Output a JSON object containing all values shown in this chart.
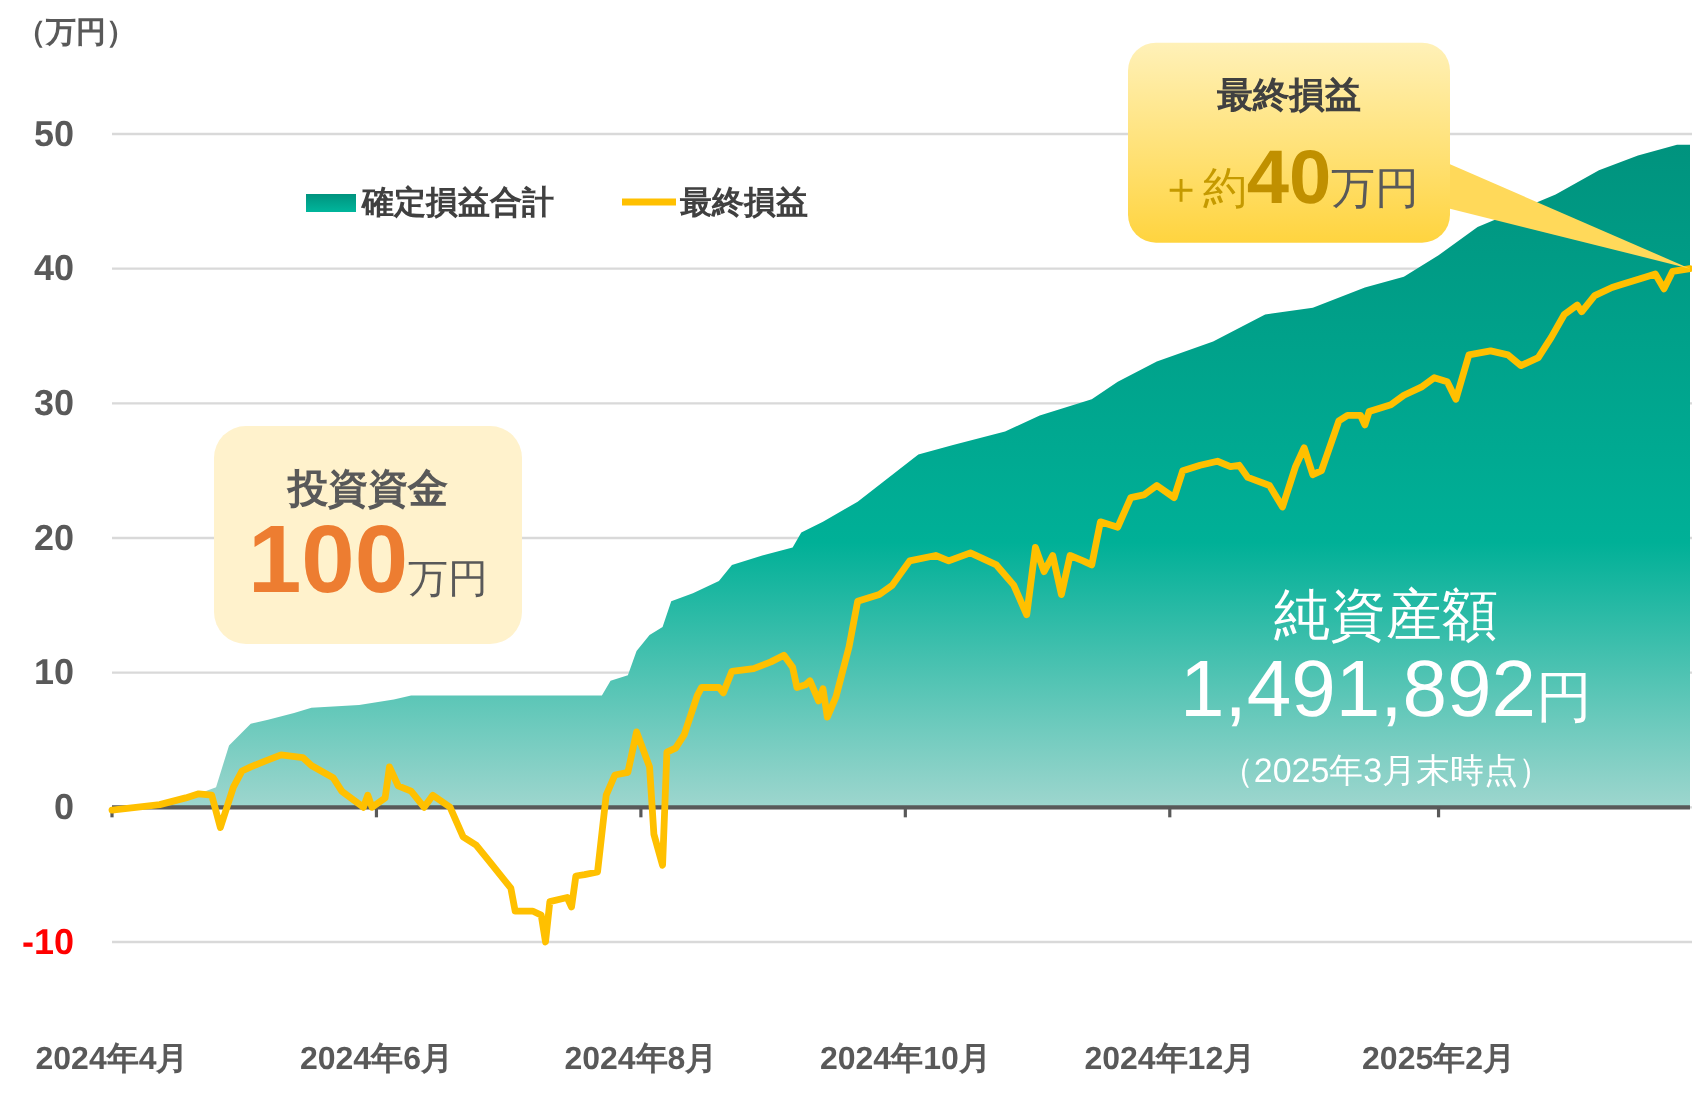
{
  "chart_data": {
    "type": "area",
    "ylabel": "（万円）",
    "xlim": [
      "2024-04-01",
      "2025-03-31"
    ],
    "xticks": [
      {
        "value": "2024-04",
        "label": "2024年4月"
      },
      {
        "value": "2024-06",
        "label": "2024年6月"
      },
      {
        "value": "2024-08",
        "label": "2024年8月"
      },
      {
        "value": "2024-10",
        "label": "2024年10月"
      },
      {
        "value": "2024-12",
        "label": "2024年12月"
      },
      {
        "value": "2025-02",
        "label": "2025年2月"
      }
    ],
    "ylim": [
      -10,
      50
    ],
    "yticks": [
      -10,
      0,
      10,
      20,
      30,
      40,
      50
    ],
    "grid": "y",
    "legend": "top left",
    "series": [
      {
        "name": "確定損益合計",
        "color": "#00937e",
        "x": [
          "2024-04-01",
          "2024-04-12",
          "2024-04-17",
          "2024-04-21",
          "2024-04-25",
          "2024-04-28",
          "2024-05-03",
          "2024-05-07",
          "2024-05-13",
          "2024-05-17",
          "2024-05-28",
          "2024-06-05",
          "2024-06-09",
          "2024-07-23",
          "2024-07-25",
          "2024-07-29",
          "2024-07-31",
          "2024-08-03",
          "2024-08-06",
          "2024-08-08",
          "2024-08-13",
          "2024-08-19",
          "2024-08-22",
          "2024-08-29",
          "2024-09-05",
          "2024-09-07",
          "2024-09-12",
          "2024-09-20",
          "2024-09-26",
          "2024-10-04",
          "2024-10-12",
          "2024-10-24",
          "2024-11-01",
          "2024-11-13",
          "2024-11-19",
          "2024-11-28",
          "2024-12-11",
          "2024-12-23",
          "2025-01-03",
          "2025-01-15",
          "2025-01-24",
          "2025-02-01",
          "2025-02-10",
          "2025-02-28",
          "2025-03-10",
          "2025-03-19",
          "2025-03-28",
          "2025-03-31"
        ],
        "values": [
          0,
          0,
          0.5,
          1.0,
          1.5,
          4.6,
          6.2,
          6.5,
          7.0,
          7.4,
          7.6,
          8.0,
          8.3,
          8.3,
          9.4,
          9.8,
          11.6,
          12.8,
          13.4,
          15.3,
          15.9,
          16.8,
          18.0,
          18.7,
          19.3,
          20.4,
          21.2,
          22.7,
          24.2,
          26.2,
          26.9,
          27.9,
          29.1,
          30.3,
          31.6,
          33.1,
          34.6,
          36.6,
          37.1,
          38.6,
          39.4,
          41.0,
          43.1,
          45.5,
          47.3,
          48.4,
          49.2,
          49.2
        ]
      },
      {
        "name": "最終損益",
        "type": "line",
        "color": "#ffc000",
        "x": [
          "2024-04-01",
          "2024-04-12",
          "2024-04-18",
          "2024-04-21",
          "2024-04-24",
          "2024-04-26",
          "2024-04-29",
          "2024-05-01",
          "2024-05-03",
          "2024-05-06",
          "2024-05-10",
          "2024-05-15",
          "2024-05-17",
          "2024-05-22",
          "2024-05-24",
          "2024-05-29",
          "2024-05-30",
          "2024-05-31",
          "2024-06-03",
          "2024-06-04",
          "2024-06-06",
          "2024-06-09",
          "2024-06-12",
          "2024-06-14",
          "2024-06-18",
          "2024-06-21",
          "2024-06-24",
          "2024-06-27",
          "2024-07-02",
          "2024-07-03",
          "2024-07-07",
          "2024-07-09",
          "2024-07-10",
          "2024-07-11",
          "2024-07-15",
          "2024-07-16",
          "2024-07-17",
          "2024-07-19",
          "2024-07-22",
          "2024-07-24",
          "2024-07-26",
          "2024-07-29",
          "2024-07-31",
          "2024-08-03",
          "2024-08-04",
          "2024-08-06",
          "2024-08-07",
          "2024-08-09",
          "2024-08-11",
          "2024-08-14",
          "2024-08-15",
          "2024-08-19",
          "2024-08-20",
          "2024-08-22",
          "2024-08-27",
          "2024-08-31",
          "2024-09-03",
          "2024-09-05",
          "2024-09-06",
          "2024-09-08",
          "2024-09-09",
          "2024-09-11",
          "2024-09-12",
          "2024-09-13",
          "2024-09-15",
          "2024-09-18",
          "2024-09-20",
          "2024-09-25",
          "2024-09-28",
          "2024-10-02",
          "2024-10-08",
          "2024-10-11",
          "2024-10-16",
          "2024-10-22",
          "2024-10-26",
          "2024-10-29",
          "2024-10-31",
          "2024-11-02",
          "2024-11-04",
          "2024-11-06",
          "2024-11-08",
          "2024-11-11",
          "2024-11-13",
          "2024-11-15",
          "2024-11-19",
          "2024-11-22",
          "2024-11-25",
          "2024-11-28",
          "2024-12-02",
          "2024-12-04",
          "2024-12-08",
          "2024-12-12",
          "2024-12-15",
          "2024-12-17",
          "2024-12-19",
          "2024-12-24",
          "2024-12-27",
          "2024-12-30",
          "2025-01-01",
          "2025-01-03",
          "2025-01-05",
          "2025-01-09",
          "2025-01-11",
          "2025-01-14",
          "2025-01-15",
          "2025-01-16",
          "2025-01-21",
          "2025-01-24",
          "2025-01-28",
          "2025-01-31",
          "2025-02-03",
          "2025-02-05",
          "2025-02-08",
          "2025-02-13",
          "2025-02-17",
          "2025-02-20",
          "2025-02-24",
          "2025-02-27",
          "2025-03-02",
          "2025-03-05",
          "2025-03-06",
          "2025-03-09",
          "2025-03-13",
          "2025-03-15",
          "2025-03-18",
          "2025-03-21",
          "2025-03-23",
          "2025-03-25",
          "2025-03-27",
          "2025-03-31"
        ],
        "values": [
          -0.2,
          0.2,
          0.7,
          1.0,
          0.9,
          -1.5,
          1.5,
          2.7,
          3.0,
          3.4,
          3.9,
          3.7,
          3.1,
          2.2,
          1.2,
          0,
          0.9,
          0,
          0.7,
          3.0,
          1.6,
          1.2,
          0,
          0.9,
          0,
          -2.2,
          -2.8,
          -4.0,
          -6.0,
          -7.7,
          -7.7,
          -8.0,
          -10.0,
          -7.0,
          -6.7,
          -7.4,
          -5.1,
          -5.0,
          -4.8,
          0.9,
          2.4,
          2.6,
          5.6,
          3.0,
          -2.0,
          -4.3,
          4.1,
          4.4,
          5.4,
          8.3,
          8.9,
          8.9,
          8.5,
          10.1,
          10.3,
          10.8,
          11.3,
          10.4,
          8.9,
          9.1,
          9.4,
          7.9,
          8.8,
          6.7,
          8.2,
          11.9,
          15.3,
          15.8,
          16.5,
          18.3,
          18.7,
          18.3,
          18.9,
          18.0,
          16.5,
          14.3,
          19.3,
          17.5,
          18.7,
          15.8,
          18.7,
          18.3,
          18.0,
          21.2,
          20.8,
          23.0,
          23.2,
          23.9,
          23.0,
          25.0,
          25.4,
          25.7,
          25.3,
          25.4,
          24.5,
          23.9,
          22.3,
          25.3,
          26.7,
          24.7,
          25.0,
          28.7,
          29.1,
          29.1,
          28.4,
          29.4,
          29.9,
          30.6,
          31.2,
          31.9,
          31.6,
          30.3,
          33.6,
          33.9,
          33.6,
          32.8,
          33.4,
          34.9,
          36.6,
          37.3,
          36.8,
          38.0,
          38.6,
          38.8,
          39.1,
          39.4,
          39.6,
          38.5,
          39.8,
          40.0
        ]
      }
    ],
    "annotations": [
      "最終損益",
      {
        "text": "＋約40万円",
        "x": "2025-03-31",
        "y": 40
      },
      "投資資金",
      "100万円",
      "純資産額",
      "1,491,892円",
      "（2025年3月末時点）"
    ]
  }
}
